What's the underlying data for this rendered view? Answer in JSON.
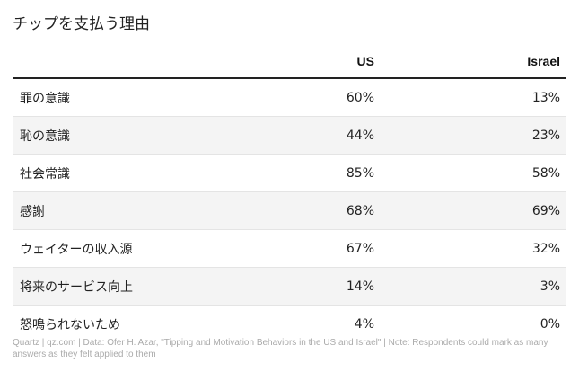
{
  "title": "チップを支払う理由",
  "chart_data": {
    "type": "table",
    "title": "チップを支払う理由",
    "columns": [
      "US",
      "Israel"
    ],
    "rows": [
      {
        "label": "罪の意識",
        "values": [
          "60%",
          "13%"
        ]
      },
      {
        "label": "恥の意識",
        "values": [
          "44%",
          "23%"
        ]
      },
      {
        "label": "社会常識",
        "values": [
          "85%",
          "58%"
        ]
      },
      {
        "label": "感謝",
        "values": [
          "68%",
          "69%"
        ]
      },
      {
        "label": "ウェイターの収入源",
        "values": [
          "67%",
          "32%"
        ]
      },
      {
        "label": "将来のサービス向上",
        "values": [
          "14%",
          "3%"
        ]
      },
      {
        "label": "怒鳴られないため",
        "values": [
          "4%",
          "0%"
        ]
      }
    ]
  },
  "footer": "Quartz | qz.com | Data: Ofer H. Azar, \"Tipping and Motivation Behaviors in the US and Israel\" | Note: Respondents could mark as many answers as they felt applied to them",
  "colors": {
    "text": "#222222",
    "header_rule": "#222222",
    "shaded_row": "#f4f4f4",
    "row_divider": "#e4e4e4",
    "footer_text": "#aaaaaa"
  }
}
